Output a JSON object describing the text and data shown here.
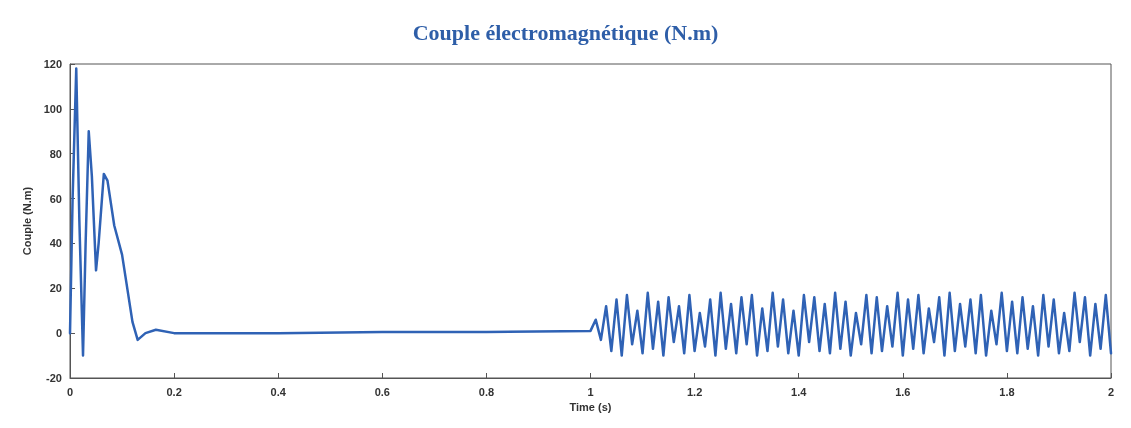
{
  "chart_data": {
    "type": "line",
    "title": "Couple électromagnétique (N.m)",
    "xlabel": "Time (s)",
    "ylabel": "Couple (N.m)",
    "xlim": [
      0,
      2
    ],
    "xticks": [
      0,
      0.2,
      0.4,
      0.6,
      0.8,
      1,
      1.2,
      1.4,
      1.6,
      1.8,
      2
    ],
    "ylim": [
      -20,
      120
    ],
    "yticks": [
      -20,
      0,
      20,
      40,
      60,
      80,
      100,
      120
    ],
    "grid": false,
    "marker": "none",
    "line_style": "solid",
    "series": [
      {
        "color": "#2f62b5",
        "x": [
          0,
          0.005,
          0.012,
          0.018,
          0.025,
          0.03,
          0.036,
          0.042,
          0.05,
          0.055,
          0.065,
          0.072,
          0.085,
          0.1,
          0.12,
          0.13,
          0.145,
          0.165,
          0.2,
          0.4,
          0.6,
          0.8,
          1.0,
          1.01,
          1.02,
          1.03,
          1.04,
          1.05,
          1.06,
          1.07,
          1.08,
          1.09,
          1.1,
          1.11,
          1.12,
          1.13,
          1.14,
          1.15,
          1.16,
          1.17,
          1.18,
          1.19,
          1.2,
          1.21,
          1.22,
          1.23,
          1.24,
          1.25,
          1.26,
          1.27,
          1.28,
          1.29,
          1.3,
          1.31,
          1.32,
          1.33,
          1.34,
          1.35,
          1.36,
          1.37,
          1.38,
          1.39,
          1.4,
          1.41,
          1.42,
          1.43,
          1.44,
          1.45,
          1.46,
          1.47,
          1.48,
          1.49,
          1.5,
          1.51,
          1.52,
          1.53,
          1.54,
          1.55,
          1.56,
          1.57,
          1.58,
          1.59,
          1.6,
          1.61,
          1.62,
          1.63,
          1.64,
          1.65,
          1.66,
          1.67,
          1.68,
          1.69,
          1.7,
          1.71,
          1.72,
          1.73,
          1.74,
          1.75,
          1.76,
          1.77,
          1.78,
          1.79,
          1.8,
          1.81,
          1.82,
          1.83,
          1.84,
          1.85,
          1.86,
          1.87,
          1.88,
          1.89,
          1.9,
          1.91,
          1.92,
          1.93,
          1.94,
          1.95,
          1.96,
          1.97,
          1.98,
          1.99,
          2.0
        ],
        "values": [
          0,
          60,
          118,
          50,
          -10,
          40,
          90,
          70,
          28,
          40,
          71,
          68,
          48,
          35,
          5,
          -3,
          0,
          1.5,
          0,
          0,
          0.5,
          0.5,
          1,
          6,
          -3,
          12,
          -8,
          15,
          -10,
          17,
          -5,
          10,
          -9,
          18,
          -7,
          14,
          -10,
          16,
          -4,
          12,
          -9,
          17,
          -8,
          9,
          -6,
          15,
          -10,
          18,
          -7,
          13,
          -9,
          16,
          -5,
          17,
          -10,
          11,
          -8,
          18,
          -6,
          15,
          -9,
          10,
          -10,
          17,
          -4,
          16,
          -8,
          13,
          -9,
          18,
          -7,
          14,
          -10,
          9,
          -5,
          17,
          -9,
          16,
          -8,
          12,
          -6,
          18,
          -10,
          15,
          -7,
          17,
          -9,
          11,
          -4,
          16,
          -10,
          18,
          -8,
          13,
          -6,
          15,
          -9,
          17,
          -10,
          10,
          -5,
          18,
          -8,
          14,
          -9,
          16,
          -7,
          12,
          -10,
          17,
          -6,
          15,
          -9,
          9,
          -8,
          18,
          -4,
          16,
          -10,
          13,
          -7,
          17,
          -9
        ]
      }
    ]
  }
}
